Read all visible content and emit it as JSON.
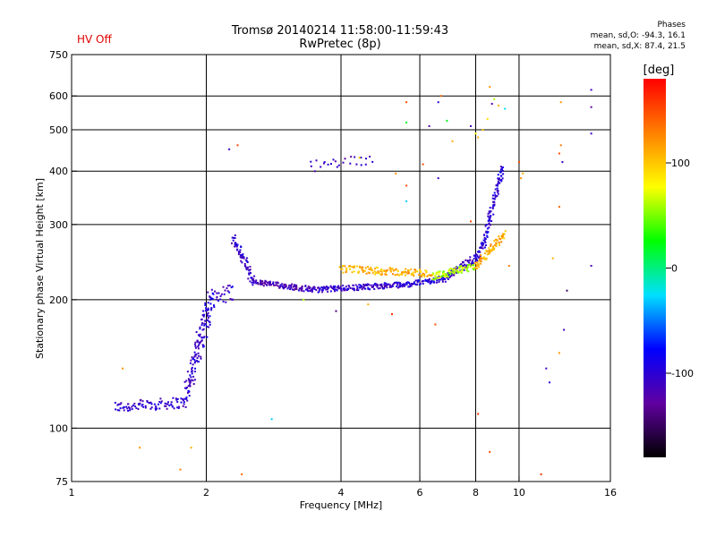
{
  "header": {
    "hv_status": "HV Off",
    "title_line1": "Tromsø 20140214 11:58:00-11:59:43",
    "title_line2": "RwPretec (8p)",
    "phases_title": "Phases",
    "phases_o": "mean, sd,O: -94.3, 16.1",
    "phases_x": "mean, sd,X:  87.4, 21.5"
  },
  "colorbar": {
    "unit_label": "[deg]",
    "range": [
      -180,
      180
    ],
    "ticks": [
      100,
      0,
      -100
    ],
    "tick_labels": [
      "100",
      "0",
      "-100"
    ],
    "stops": [
      "#000000",
      "#6000a0",
      "#0000ff",
      "#00e0ff",
      "#00ff00",
      "#ffff00",
      "#ff8000",
      "#ff0000"
    ]
  },
  "chart_data": {
    "type": "scatter",
    "title": "Tromsø 20140214 11:58:00-11:59:43",
    "subtitle": "RwPretec (8p)",
    "xlabel": "Frequency [MHz]",
    "ylabel": "Stationary phase Virtual Height [km]",
    "xscale": "log",
    "yscale": "log",
    "xlim": [
      1,
      16
    ],
    "ylim": [
      75,
      750
    ],
    "xticks": [
      1,
      2,
      4,
      6,
      8,
      10,
      16
    ],
    "yticks": [
      75,
      100,
      200,
      300,
      400,
      500,
      600,
      750
    ],
    "x_gridlines": [
      2,
      4,
      6,
      8,
      10
    ],
    "y_gridlines": [
      100,
      200,
      300,
      400,
      500,
      600
    ],
    "color_by": "phase [deg]",
    "traces": [
      {
        "f_start": 1.25,
        "f_end": 1.8,
        "h_start": 112,
        "h_end": 115,
        "phase": -105,
        "spread": 0.03,
        "n": 90
      },
      {
        "f_start": 1.8,
        "f_end": 2.05,
        "h_start": 120,
        "h_end": 200,
        "phase": -105,
        "spread": 0.09,
        "n": 140
      },
      {
        "f_start": 2.05,
        "f_end": 2.3,
        "h_start": 200,
        "h_end": 210,
        "phase": -100,
        "spread": 0.05,
        "n": 30
      },
      {
        "f_start": 2.3,
        "f_end": 2.55,
        "h_start": 280,
        "h_end": 220,
        "phase": -105,
        "spread": 0.03,
        "n": 70
      },
      {
        "f_start": 2.55,
        "f_end": 3.5,
        "h_start": 220,
        "h_end": 211,
        "phase": -115,
        "spread": 0.015,
        "n": 120
      },
      {
        "f_start": 3.5,
        "f_end": 5.6,
        "h_start": 211,
        "h_end": 217,
        "phase": -105,
        "spread": 0.015,
        "n": 170
      },
      {
        "f_start": 5.6,
        "f_end": 6.8,
        "h_start": 217,
        "h_end": 224,
        "phase": -95,
        "spread": 0.015,
        "n": 70
      },
      {
        "f_start": 6.8,
        "f_end": 8.2,
        "h_start": 224,
        "h_end": 255,
        "phase": -105,
        "spread": 0.02,
        "n": 90
      },
      {
        "f_start": 8.2,
        "f_end": 9.2,
        "h_start": 255,
        "h_end": 410,
        "phase": -100,
        "spread": 0.03,
        "n": 110
      },
      {
        "f_start": 4.0,
        "f_end": 6.4,
        "h_start": 236,
        "h_end": 230,
        "phase": 110,
        "spread": 0.02,
        "n": 140
      },
      {
        "f_start": 6.4,
        "f_end": 8.0,
        "h_start": 226,
        "h_end": 240,
        "phase": 60,
        "spread": 0.02,
        "n": 90
      },
      {
        "f_start": 8.0,
        "f_end": 9.3,
        "h_start": 240,
        "h_end": 285,
        "phase": 110,
        "spread": 0.02,
        "n": 80
      },
      {
        "f_start": 3.4,
        "f_end": 4.7,
        "h_start": 410,
        "h_end": 425,
        "phase": -110,
        "spread": 0.03,
        "n": 25
      }
    ],
    "isolated_points": [
      {
        "x": 1.3,
        "y": 138,
        "phase": 120
      },
      {
        "x": 1.42,
        "y": 90,
        "phase": 120
      },
      {
        "x": 1.75,
        "y": 80,
        "phase": 130
      },
      {
        "x": 1.85,
        "y": 90,
        "phase": 110
      },
      {
        "x": 2.4,
        "y": 78,
        "phase": 140
      },
      {
        "x": 2.35,
        "y": 460,
        "phase": 150
      },
      {
        "x": 2.25,
        "y": 450,
        "phase": -110
      },
      {
        "x": 2.8,
        "y": 105,
        "phase": -30
      },
      {
        "x": 3.3,
        "y": 200,
        "phase": 60
      },
      {
        "x": 3.9,
        "y": 188,
        "phase": -140
      },
      {
        "x": 4.6,
        "y": 195,
        "phase": 110
      },
      {
        "x": 5.2,
        "y": 185,
        "phase": 160
      },
      {
        "x": 4.4,
        "y": 430,
        "phase": 100
      },
      {
        "x": 5.3,
        "y": 395,
        "phase": 120
      },
      {
        "x": 5.6,
        "y": 580,
        "phase": 150
      },
      {
        "x": 5.6,
        "y": 520,
        "phase": 20
      },
      {
        "x": 5.6,
        "y": 370,
        "phase": 150
      },
      {
        "x": 5.6,
        "y": 340,
        "phase": -30
      },
      {
        "x": 6.1,
        "y": 415,
        "phase": 150
      },
      {
        "x": 6.3,
        "y": 510,
        "phase": -120
      },
      {
        "x": 6.5,
        "y": 175,
        "phase": 150
      },
      {
        "x": 6.6,
        "y": 385,
        "phase": -110
      },
      {
        "x": 6.6,
        "y": 580,
        "phase": -100
      },
      {
        "x": 6.7,
        "y": 600,
        "phase": 140
      },
      {
        "x": 6.9,
        "y": 525,
        "phase": 20
      },
      {
        "x": 7.1,
        "y": 470,
        "phase": 110
      },
      {
        "x": 7.5,
        "y": 240,
        "phase": -110
      },
      {
        "x": 7.8,
        "y": 305,
        "phase": 150
      },
      {
        "x": 7.8,
        "y": 510,
        "phase": -110
      },
      {
        "x": 8.0,
        "y": 490,
        "phase": 80
      },
      {
        "x": 8.1,
        "y": 480,
        "phase": 110
      },
      {
        "x": 8.1,
        "y": 108,
        "phase": 160
      },
      {
        "x": 8.3,
        "y": 500,
        "phase": 100
      },
      {
        "x": 8.5,
        "y": 530,
        "phase": 90
      },
      {
        "x": 8.6,
        "y": 630,
        "phase": 120
      },
      {
        "x": 8.7,
        "y": 575,
        "phase": -120
      },
      {
        "x": 8.8,
        "y": 590,
        "phase": 60
      },
      {
        "x": 8.6,
        "y": 88,
        "phase": 150
      },
      {
        "x": 9.0,
        "y": 570,
        "phase": 110
      },
      {
        "x": 9.5,
        "y": 240,
        "phase": 130
      },
      {
        "x": 9.3,
        "y": 560,
        "phase": -20
      },
      {
        "x": 10.0,
        "y": 420,
        "phase": 150
      },
      {
        "x": 10.1,
        "y": 385,
        "phase": 120
      },
      {
        "x": 10.2,
        "y": 395,
        "phase": 110
      },
      {
        "x": 11.2,
        "y": 78,
        "phase": 160
      },
      {
        "x": 11.5,
        "y": 138,
        "phase": -110
      },
      {
        "x": 11.7,
        "y": 128,
        "phase": -100
      },
      {
        "x": 11.9,
        "y": 250,
        "phase": 110
      },
      {
        "x": 12.3,
        "y": 440,
        "phase": 150
      },
      {
        "x": 12.4,
        "y": 460,
        "phase": 130
      },
      {
        "x": 12.5,
        "y": 420,
        "phase": -110
      },
      {
        "x": 12.4,
        "y": 580,
        "phase": 120
      },
      {
        "x": 12.3,
        "y": 330,
        "phase": 140
      },
      {
        "x": 12.6,
        "y": 170,
        "phase": -110
      },
      {
        "x": 12.8,
        "y": 210,
        "phase": -150
      },
      {
        "x": 12.3,
        "y": 150,
        "phase": 120
      },
      {
        "x": 14.5,
        "y": 620,
        "phase": -110
      },
      {
        "x": 14.5,
        "y": 565,
        "phase": -130
      },
      {
        "x": 14.5,
        "y": 240,
        "phase": -120
      },
      {
        "x": 14.5,
        "y": 490,
        "phase": -110
      }
    ]
  }
}
